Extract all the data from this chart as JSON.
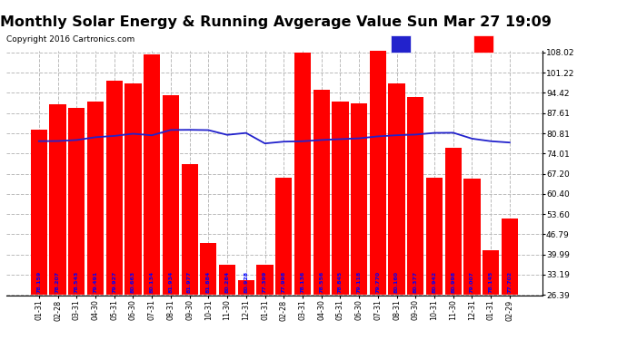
{
  "title": "Monthly Solar Energy & Running Avgerage Value Sun Mar 27 19:09",
  "copyright": "Copyright 2016 Cartronics.com",
  "categories": [
    "01-31",
    "02-28",
    "03-31",
    "04-30",
    "05-31",
    "06-30",
    "07-31",
    "08-31",
    "09-30",
    "10-31",
    "11-30",
    "12-31",
    "01-31",
    "02-28",
    "03-31",
    "04-30",
    "05-31",
    "06-30",
    "07-31",
    "08-31",
    "09-30",
    "10-31",
    "11-30",
    "12-31",
    "01-31",
    "02-29"
  ],
  "bar_tops": [
    82.0,
    90.5,
    89.5,
    91.5,
    98.5,
    97.5,
    107.5,
    93.5,
    70.5,
    44.0,
    36.5,
    31.5,
    36.5,
    66.0,
    108.0,
    95.5,
    91.5,
    91.0,
    108.5,
    97.5,
    93.0,
    66.0,
    76.0,
    65.5,
    41.5,
    52.0
  ],
  "avg_values": [
    78.159,
    78.207,
    78.543,
    79.491,
    79.927,
    80.663,
    80.134,
    81.934,
    81.977,
    81.884,
    80.284,
    80.928,
    77.399,
    77.998,
    78.136,
    78.556,
    78.845,
    79.118,
    79.77,
    80.16,
    80.377,
    80.942,
    80.998,
    79.007,
    78.145,
    77.702
  ],
  "bar_color": "#ff0000",
  "avg_line_color": "#2222cc",
  "avg_label_color": "#0000ff",
  "background_color": "#ffffff",
  "grid_color": "#bbbbbb",
  "title_fontsize": 11.5,
  "copyright_fontsize": 6.5,
  "ytick_labels": [
    "26.39",
    "33.19",
    "39.99",
    "46.79",
    "53.60",
    "60.40",
    "67.20",
    "74.01",
    "80.81",
    "87.61",
    "94.42",
    "101.22",
    "108.02"
  ],
  "ytick_values": [
    26.39,
    33.19,
    39.99,
    46.79,
    53.6,
    60.4,
    67.2,
    74.01,
    80.81,
    87.61,
    94.42,
    101.22,
    108.02
  ],
  "ymin": 26.39,
  "ymax": 108.02,
  "legend_bg": "#0000cc",
  "legend_avg_color": "#2222cc",
  "legend_monthly_color": "#ff0000"
}
